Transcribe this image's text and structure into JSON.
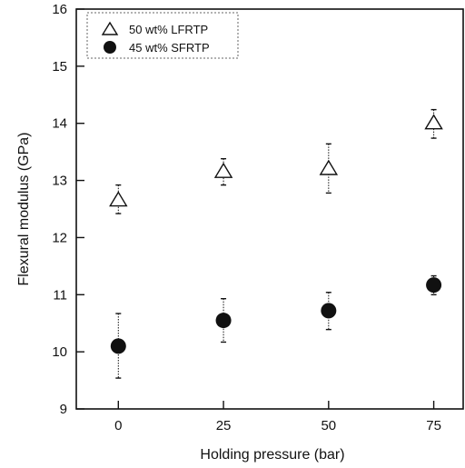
{
  "chart_data": {
    "type": "scatter",
    "title": "",
    "xlabel": "Holding pressure (bar)",
    "ylabel": "Flexural modulus (GPa)",
    "x_ticks": [
      "0",
      "25",
      "50",
      "75"
    ],
    "y_ticks": [
      "9",
      "10",
      "11",
      "12",
      "13",
      "14",
      "15",
      "16"
    ],
    "xlim": [
      -10,
      82
    ],
    "ylim": [
      9,
      16
    ],
    "grid": false,
    "legend_position": "top-left",
    "series": [
      {
        "name": "50 wt% LFRTP",
        "marker": "open-triangle",
        "color": "#111111",
        "x": [
          0,
          25,
          50,
          75
        ],
        "y": [
          12.65,
          13.15,
          13.2,
          14.0
        ],
        "err_low": [
          12.42,
          12.92,
          12.78,
          13.74
        ],
        "err_high": [
          12.92,
          13.38,
          13.64,
          14.24
        ]
      },
      {
        "name": "45 wt% SFRTP",
        "marker": "filled-circle",
        "color": "#111111",
        "x": [
          0,
          25,
          50,
          75
        ],
        "y": [
          10.1,
          10.55,
          10.72,
          11.17
        ],
        "err_low": [
          9.54,
          10.17,
          10.39,
          11.0
        ],
        "err_high": [
          10.67,
          10.93,
          11.04,
          11.33
        ]
      }
    ]
  }
}
